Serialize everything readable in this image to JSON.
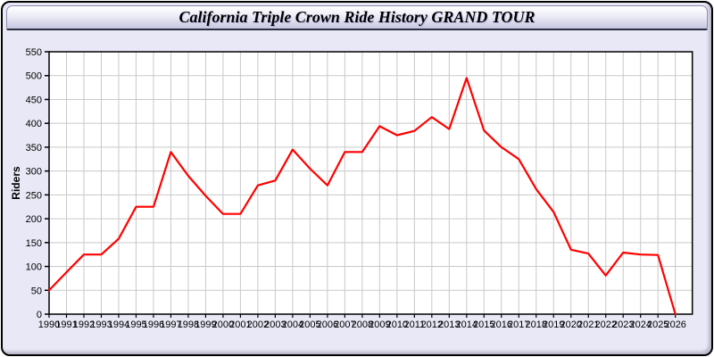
{
  "window": {
    "title": "California Triple Crown Ride History GRAND TOUR"
  },
  "colors": {
    "line": "#ff0000",
    "body_bg": "#e8e8f6",
    "plot_bg": "#ffffff",
    "grid": "#c9c9c9",
    "axis": "#000000",
    "tick_text": "#000000"
  },
  "chart_data": {
    "type": "line",
    "title": "California Triple Crown Ride History GRAND TOUR",
    "xlabel": "",
    "ylabel": "Riders",
    "x": [
      1990,
      1991,
      1992,
      1993,
      1994,
      1995,
      1996,
      1997,
      1998,
      1999,
      2000,
      2001,
      2002,
      2003,
      2004,
      2005,
      2006,
      2007,
      2008,
      2009,
      2010,
      2011,
      2012,
      2013,
      2014,
      2015,
      2016,
      2017,
      2018,
      2019,
      2020,
      2021,
      2022,
      2023,
      2024,
      2025,
      2026
    ],
    "series": [
      {
        "name": "Riders",
        "color": "#ff0000",
        "values": [
          50,
          88,
          125,
          125,
          158,
          225,
          225,
          340,
          290,
          248,
          210,
          210,
          270,
          280,
          345,
          305,
          270,
          340,
          340,
          394,
          375,
          384,
          413,
          388,
          495,
          385,
          350,
          325,
          262,
          214,
          135,
          127,
          81,
          129,
          125,
          124,
          0
        ]
      }
    ],
    "ylim": [
      0,
      550
    ],
    "yticks": [
      0,
      50,
      100,
      150,
      200,
      250,
      300,
      350,
      400,
      450,
      500,
      550
    ],
    "ytick_step": 50,
    "grid": true,
    "legend_position": "none"
  }
}
